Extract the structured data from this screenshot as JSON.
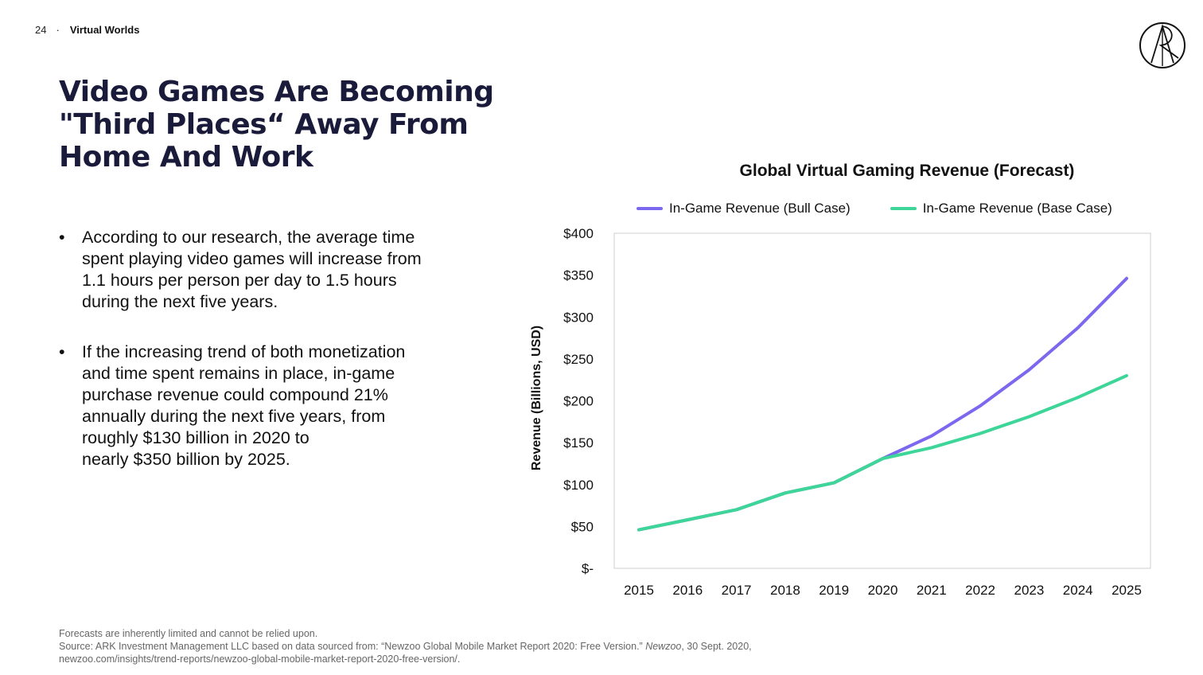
{
  "header": {
    "page_number": "24",
    "separator": "·",
    "section": "Virtual Worlds"
  },
  "logo": {
    "name": "ark-logo"
  },
  "title": "Video Games Are Becoming \"Third Places“ Away From Home And Work",
  "bullets": [
    "According to our research, the average time\nspent playing video games will increase from\n1.1 hours per person per day to 1.5 hours\nduring the next five years.",
    "If the increasing trend of both monetization\nand time spent remains in place, in-game\npurchase revenue could compound 21%\nannually during the next five years, from\nroughly $130 billion in 2020 to\nnearly $350 billion by 2025."
  ],
  "bullet_mark": "•",
  "chart_data": {
    "type": "line",
    "title": "Global Virtual Gaming Revenue (Forecast)",
    "xlabel": "",
    "ylabel": "Revenue (Billions, USD)",
    "x": [
      "2015",
      "2016",
      "2017",
      "2018",
      "2019",
      "2020",
      "2021",
      "2022",
      "2023",
      "2024",
      "2025"
    ],
    "ylim": [
      0,
      400
    ],
    "yticks": [
      0,
      50,
      100,
      150,
      200,
      250,
      300,
      350,
      400
    ],
    "ytick_labels": [
      "$-",
      "$50",
      "$100",
      "$150",
      "$200",
      "$250",
      "$300",
      "$350",
      "$400"
    ],
    "legend_position": "top",
    "grid": false,
    "series": [
      {
        "name": "In-Game Revenue (Bull Case)",
        "color": "#7b68ee",
        "values": [
          46,
          58,
          70,
          90,
          102,
          131,
          158,
          194,
          237,
          287,
          346
        ]
      },
      {
        "name": "In-Game Revenue (Base Case)",
        "color": "#3dd598",
        "values": [
          46,
          58,
          70,
          90,
          102,
          131,
          144,
          161,
          181,
          204,
          230
        ]
      }
    ]
  },
  "footer": {
    "disclaimer": "Forecasts are inherently limited and cannot be relied upon.",
    "source_prefix": "Source: ARK Investment Management LLC based on data sourced from: “Newzoo Global Mobile Market Report 2020: Free Version.” ",
    "source_publisher": "Newzoo",
    "source_date": ", 30 Sept. 2020,",
    "source_url": "newzoo.com/insights/trend-reports/newzoo-global-mobile-market-report-2020-free-version/."
  }
}
